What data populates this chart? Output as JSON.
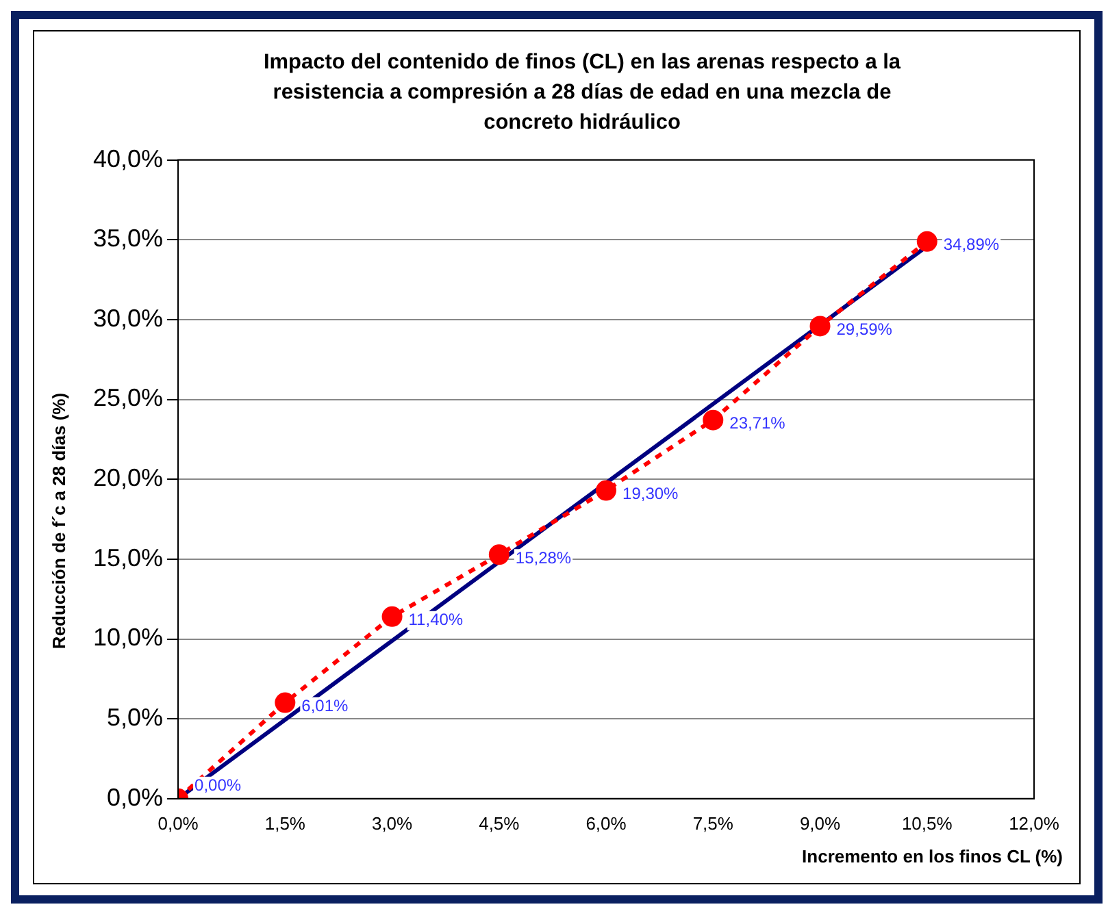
{
  "chart_data": {
    "type": "line",
    "title": "Impacto del contenido de finos (CL) en las arenas respecto a la resistencia a compresión a 28 días de edad en una mezcla de concreto hidráulico",
    "xlabel": "Incremento en los finos CL  (%)",
    "ylabel": "Reducción de f´c a 28 días (%)",
    "x": [
      0,
      1.5,
      3,
      4.5,
      6,
      7.5,
      9,
      10.5
    ],
    "series": [
      {
        "color": "#ff0000",
        "marker": "circle",
        "line_style": "dashed",
        "values": [
          0,
          6.01,
          11.4,
          15.28,
          19.3,
          23.71,
          29.59,
          34.89
        ],
        "value_labels": [
          "0,00%",
          "6,01%",
          "11,40%",
          "15,28%",
          "19,30%",
          "23,71%",
          "29,59%",
          "34,89%"
        ]
      },
      {
        "color": "#000080",
        "marker": "none",
        "line_style": "solid",
        "x": [
          0,
          10.5
        ],
        "values": [
          0,
          34.6
        ]
      }
    ],
    "xlim": [
      0,
      12
    ],
    "xticks": [
      {
        "value": 0,
        "label": "0,0%"
      },
      {
        "value": 1.5,
        "label": "1,5%"
      },
      {
        "value": 3,
        "label": "3,0%"
      },
      {
        "value": 4.5,
        "label": "4,5%"
      },
      {
        "value": 6,
        "label": "6,0%"
      },
      {
        "value": 7.5,
        "label": "7,5%"
      },
      {
        "value": 9,
        "label": "9,0%"
      },
      {
        "value": 10.5,
        "label": "10,5%"
      },
      {
        "value": 12,
        "label": "12,0%"
      }
    ],
    "ylim": [
      0,
      40
    ],
    "yticks": [
      {
        "value": 0,
        "label": "0,0%"
      },
      {
        "value": 5,
        "label": "5,0%"
      },
      {
        "value": 10,
        "label": "10,0%"
      },
      {
        "value": 15,
        "label": "15,0%"
      },
      {
        "value": 20,
        "label": "20,0%"
      },
      {
        "value": 25,
        "label": "25,0%"
      },
      {
        "value": 30,
        "label": "30,0%"
      },
      {
        "value": 35,
        "label": "35,0%"
      },
      {
        "value": 40,
        "label": "40,0%"
      }
    ],
    "grid": "y"
  }
}
